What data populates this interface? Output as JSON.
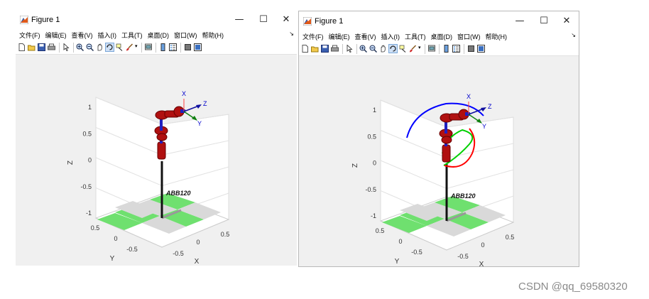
{
  "figures": [
    {
      "title": "Figure 1",
      "window_buttons": {
        "minimize": "—",
        "maximize": "☐",
        "close": "✕"
      },
      "menu": [
        "文件(F)",
        "编辑(E)",
        "查看(V)",
        "插入(I)",
        "工具(T)",
        "桌面(D)",
        "窗口(W)",
        "帮助(H)"
      ],
      "toolbar": [
        "new-figure",
        "open-file",
        "save",
        "print",
        "pointer",
        "zoom-in",
        "zoom-out",
        "pan",
        "rotate-3d",
        "data-cursor",
        "brush",
        "link-plot",
        "colorbar",
        "legend",
        "hide-plot-tools",
        "show-plot-tools"
      ],
      "axes": {
        "z_label": "Z",
        "x_label": "X",
        "y_label": "Y",
        "z_ticks": [
          "1",
          "0.5",
          "0",
          "-0.5",
          "-1"
        ],
        "x_ticks": [
          "-0.5",
          "0",
          "0.5"
        ],
        "y_ticks": [
          "0.5",
          "0",
          "-0.5"
        ]
      },
      "robot_label": "ABB120",
      "frame_labels": {
        "x": "X",
        "y": "Y",
        "z": "Z"
      },
      "trajectory": false
    },
    {
      "title": "Figure 1",
      "window_buttons": {
        "minimize": "—",
        "maximize": "☐",
        "close": "✕"
      },
      "menu": [
        "文件(F)",
        "编辑(E)",
        "查看(V)",
        "插入(I)",
        "工具(T)",
        "桌面(D)",
        "窗口(W)",
        "帮助(H)"
      ],
      "toolbar": [
        "new-figure",
        "open-file",
        "save",
        "print",
        "pointer",
        "zoom-in",
        "zoom-out",
        "pan",
        "rotate-3d",
        "data-cursor",
        "brush",
        "link-plot",
        "colorbar",
        "legend",
        "hide-plot-tools",
        "show-plot-tools"
      ],
      "axes": {
        "z_label": "Z",
        "x_label": "X",
        "y_label": "Y",
        "z_ticks": [
          "1",
          "0.5",
          "0",
          "-0.5",
          "-1"
        ],
        "x_ticks": [
          "-0.5",
          "0",
          "0.5"
        ],
        "y_ticks": [
          "0.5",
          "0",
          "-0.5"
        ]
      },
      "robot_label": "ABB120",
      "frame_labels": {
        "x": "X",
        "y": "Y",
        "z": "Z"
      },
      "trajectory": true,
      "trajectory_colors": [
        "#0000ff",
        "#00d000",
        "#ff0000"
      ]
    }
  ],
  "colors": {
    "floor_green": "#6fe06f",
    "floor_gray": "#d9d9d9",
    "link_red": "#b01010",
    "joint_blue": "#2020c0",
    "canvas_bg": "#f0f0f0",
    "axis_x_label": "#0000cc"
  },
  "watermark": "CSDN @qq_69580320"
}
